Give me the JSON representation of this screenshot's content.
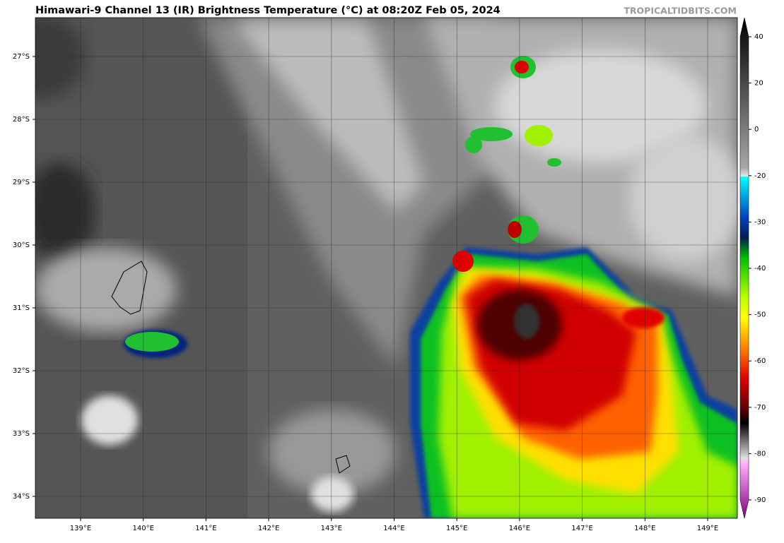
{
  "header": {
    "title": "Himawari-9 Channel 13 (IR) Brightness Temperature (°C) at 08:20Z Feb 05, 2024",
    "source": "TROPICALTIDBITS.COM"
  },
  "map": {
    "lon_labels": [
      "139°E",
      "140°E",
      "141°E",
      "142°E",
      "143°E",
      "144°E",
      "145°E",
      "146°E",
      "147°E",
      "148°E",
      "149°E"
    ],
    "lat_labels": [
      "27°S",
      "28°S",
      "29°S",
      "30°S",
      "31°S",
      "32°S",
      "33°S",
      "34°S"
    ]
  },
  "colorbar": {
    "ticks": [
      40,
      20,
      0,
      -20,
      -30,
      -40,
      -50,
      -60,
      -70,
      -80,
      -90
    ]
  }
}
